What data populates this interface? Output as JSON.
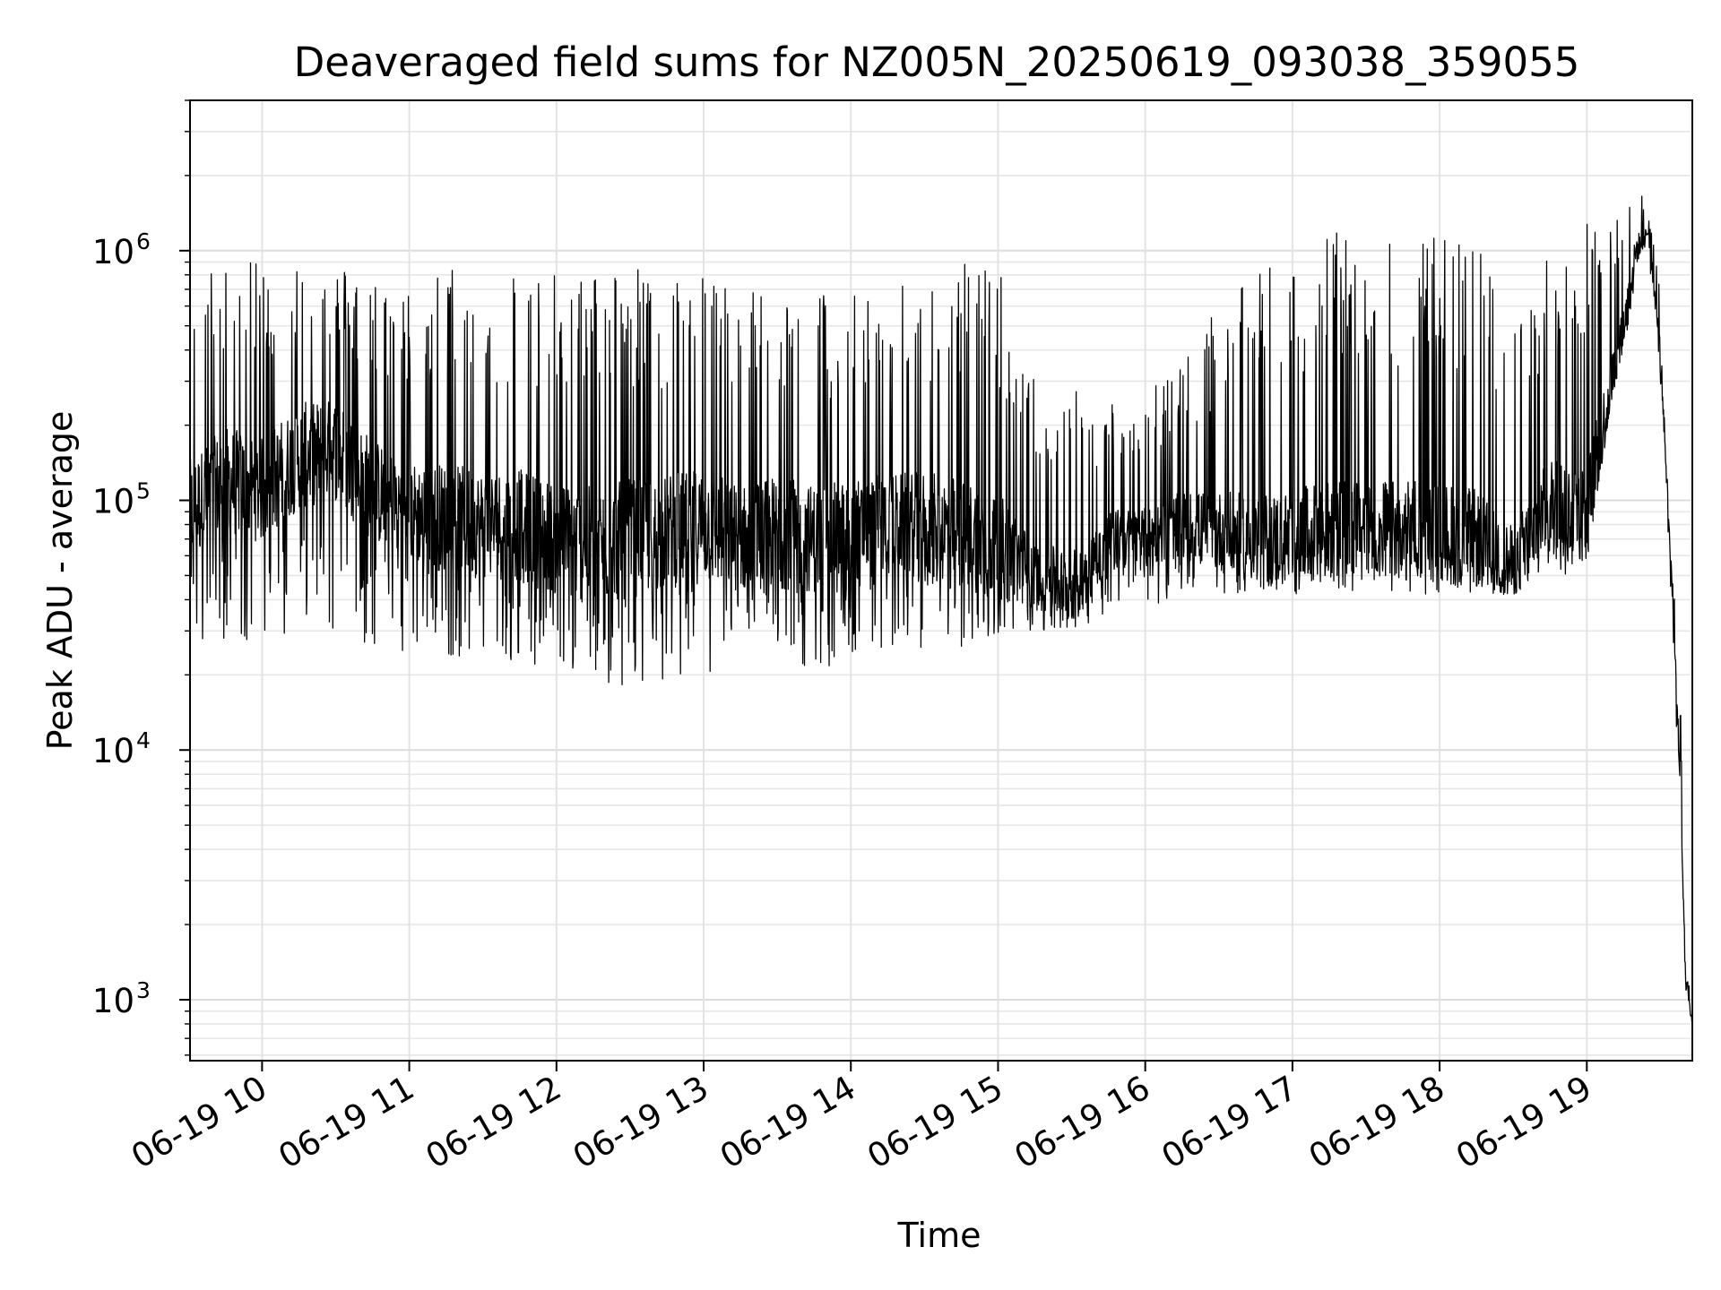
{
  "chart_data": {
    "type": "line",
    "title": "Deaveraged field sums for NZ005N_20250619_093038_359055",
    "xlabel": "Time",
    "ylabel": "Peak ADU - average",
    "y_scale": "log",
    "ylim": [
      570,
      4000000
    ],
    "xlim": [
      "2025-06-19T09:30:38",
      "2025-06-19T19:43:00"
    ],
    "grid": true,
    "line_color": "#000000",
    "x_tick_labels": [
      "06-19 10",
      "06-19 11",
      "06-19 12",
      "06-19 13",
      "06-19 14",
      "06-19 15",
      "06-19 16",
      "06-19 17",
      "06-19 18",
      "06-19 19"
    ],
    "y_tick_labels": [
      {
        "base": "10",
        "exp": "3",
        "value": 1000
      },
      {
        "base": "10",
        "exp": "4",
        "value": 10000
      },
      {
        "base": "10",
        "exp": "5",
        "value": 100000
      },
      {
        "base": "10",
        "exp": "6",
        "value": 1000000
      }
    ],
    "series": [
      {
        "x": [
          "2025-06-19T09:30:38",
          "2025-06-19T09:45:00",
          "2025-06-19T10:00:00",
          "2025-06-19T10:15:00",
          "2025-06-19T10:30:00",
          "2025-06-19T10:45:00",
          "2025-06-19T11:00:00",
          "2025-06-19T11:15:00",
          "2025-06-19T11:30:00",
          "2025-06-19T11:45:00",
          "2025-06-19T12:00:00",
          "2025-06-19T12:15:00",
          "2025-06-19T12:30:00",
          "2025-06-19T12:45:00",
          "2025-06-19T13:00:00",
          "2025-06-19T13:15:00",
          "2025-06-19T13:30:00",
          "2025-06-19T13:45:00",
          "2025-06-19T14:00:00",
          "2025-06-19T14:15:00",
          "2025-06-19T14:30:00",
          "2025-06-19T14:45:00",
          "2025-06-19T15:00:00",
          "2025-06-19T15:15:00",
          "2025-06-19T15:30:00",
          "2025-06-19T15:45:00",
          "2025-06-19T16:00:00",
          "2025-06-19T16:15:00",
          "2025-06-19T16:30:00",
          "2025-06-19T16:45:00",
          "2025-06-19T17:00:00",
          "2025-06-19T17:15:00",
          "2025-06-19T17:30:00",
          "2025-06-19T17:45:00",
          "2025-06-19T18:00:00",
          "2025-06-19T18:15:00",
          "2025-06-19T18:30:00",
          "2025-06-19T18:45:00",
          "2025-06-19T19:00:00",
          "2025-06-19T19:10:00",
          "2025-06-19T19:15:00",
          "2025-06-19T19:20:00",
          "2025-06-19T19:25:00",
          "2025-06-19T19:30:00",
          "2025-06-19T19:35:00",
          "2025-06-19T19:38:00",
          "2025-06-19T19:40:00",
          "2025-06-19T19:43:00"
        ],
        "median": [
          90000,
          120000,
          110000,
          150000,
          160000,
          110000,
          90000,
          85000,
          80000,
          80000,
          70000,
          65000,
          70000,
          75000,
          80000,
          70000,
          75000,
          70000,
          75000,
          80000,
          80000,
          75000,
          65000,
          50000,
          45000,
          70000,
          70000,
          80000,
          75000,
          70000,
          70000,
          75000,
          80000,
          75000,
          75000,
          70000,
          55000,
          100000,
          90000,
          300000,
          500000,
          1000000,
          1200000,
          400000,
          40000,
          8000,
          1500,
          800
        ],
        "low": [
          25000,
          25000,
          28000,
          30000,
          30000,
          25000,
          25000,
          24000,
          22000,
          22000,
          18000,
          17000,
          17000,
          18000,
          19000,
          20000,
          19000,
          20000,
          22000,
          24000,
          25000,
          25000,
          26000,
          30000,
          30000,
          35000,
          38000,
          40000,
          42000,
          42000,
          42000,
          42000,
          42000,
          42000,
          42000,
          42000,
          42000,
          50000,
          50000,
          250000,
          400000,
          700000,
          1000000,
          300000,
          30000,
          5000,
          1000,
          800
        ],
        "high": [
          800000,
          900000,
          900000,
          1000000,
          900000,
          800000,
          700000,
          900000,
          800000,
          900000,
          800000,
          900000,
          900000,
          800000,
          900000,
          700000,
          800000,
          700000,
          700000,
          700000,
          800000,
          900000,
          1000000,
          300000,
          300000,
          250000,
          300000,
          350000,
          600000,
          800000,
          1100000,
          1200000,
          1100000,
          1200000,
          1200000,
          1100000,
          500000,
          1000000,
          1400000,
          1500000,
          1500000,
          2000000,
          1400000,
          800000,
          50000,
          20000,
          2400,
          1000
        ]
      }
    ]
  }
}
